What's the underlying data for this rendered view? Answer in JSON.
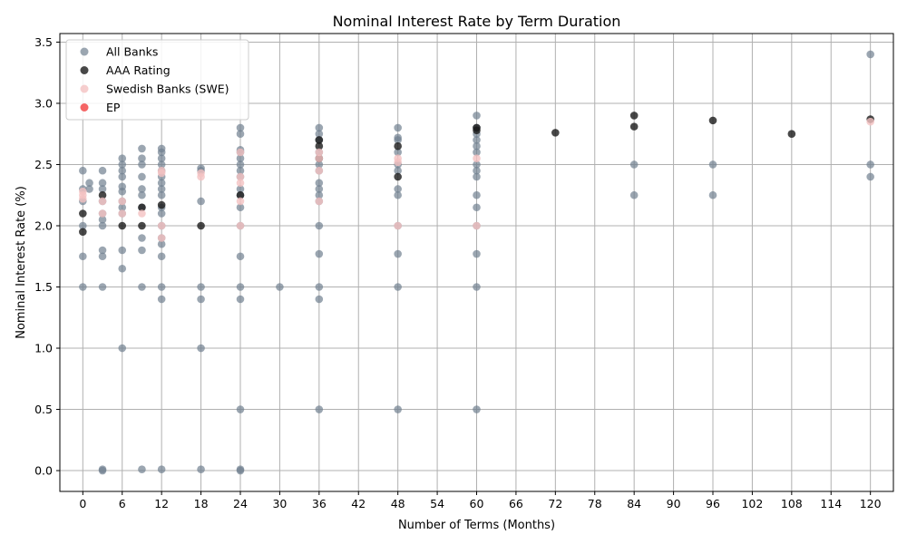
{
  "chart_data": {
    "type": "scatter",
    "title": "Nominal Interest Rate by Term Duration",
    "xlabel": "Number of Terms (Months)",
    "ylabel": "Nominal Interest Rate (%)",
    "xlim": [
      -3.5,
      123.5
    ],
    "ylim": [
      -0.17,
      3.57
    ],
    "x_ticks": [
      0,
      6,
      12,
      18,
      24,
      30,
      36,
      42,
      48,
      54,
      60,
      66,
      72,
      78,
      84,
      90,
      96,
      102,
      108,
      114,
      120
    ],
    "y_ticks": [
      0.0,
      0.5,
      1.0,
      1.5,
      2.0,
      2.5,
      3.0,
      3.5
    ],
    "y_tick_labels": [
      "0.0",
      "0.5",
      "1.0",
      "1.5",
      "2.0",
      "2.5",
      "3.0",
      "3.5"
    ],
    "grid": true,
    "legend": "top-left",
    "series": [
      {
        "name": "All Banks",
        "color": "#708090",
        "points": [
          [
            0,
            2.45
          ],
          [
            0,
            2.3
          ],
          [
            0,
            2.2
          ],
          [
            0,
            2.0
          ],
          [
            0,
            1.75
          ],
          [
            0,
            1.5
          ],
          [
            1,
            2.35
          ],
          [
            1,
            2.3
          ],
          [
            3,
            2.45
          ],
          [
            3,
            2.35
          ],
          [
            3,
            2.3
          ],
          [
            3,
            2.2
          ],
          [
            3,
            2.1
          ],
          [
            3,
            2.05
          ],
          [
            3,
            2.0
          ],
          [
            3,
            1.8
          ],
          [
            3,
            1.75
          ],
          [
            3,
            1.5
          ],
          [
            3,
            0.01
          ],
          [
            3,
            0.0
          ],
          [
            6,
            2.55
          ],
          [
            6,
            2.5
          ],
          [
            6,
            2.45
          ],
          [
            6,
            2.4
          ],
          [
            6,
            2.32
          ],
          [
            6,
            2.28
          ],
          [
            6,
            2.2
          ],
          [
            6,
            2.15
          ],
          [
            6,
            2.1
          ],
          [
            6,
            1.8
          ],
          [
            6,
            1.65
          ],
          [
            6,
            1.0
          ],
          [
            9,
            2.63
          ],
          [
            9,
            2.55
          ],
          [
            9,
            2.5
          ],
          [
            9,
            2.4
          ],
          [
            9,
            2.3
          ],
          [
            9,
            2.25
          ],
          [
            9,
            2.15
          ],
          [
            9,
            1.9
          ],
          [
            9,
            1.8
          ],
          [
            9,
            1.5
          ],
          [
            9,
            0.01
          ],
          [
            12,
            2.63
          ],
          [
            12,
            2.6
          ],
          [
            12,
            2.55
          ],
          [
            12,
            2.5
          ],
          [
            12,
            2.45
          ],
          [
            12,
            2.4
          ],
          [
            12,
            2.35
          ],
          [
            12,
            2.3
          ],
          [
            12,
            2.25
          ],
          [
            12,
            2.15
          ],
          [
            12,
            2.1
          ],
          [
            12,
            2.0
          ],
          [
            12,
            1.9
          ],
          [
            12,
            1.85
          ],
          [
            12,
            1.75
          ],
          [
            12,
            1.5
          ],
          [
            12,
            1.4
          ],
          [
            12,
            0.01
          ],
          [
            18,
            2.47
          ],
          [
            18,
            2.45
          ],
          [
            18,
            2.2
          ],
          [
            18,
            1.5
          ],
          [
            18,
            1.4
          ],
          [
            18,
            1.0
          ],
          [
            18,
            0.01
          ],
          [
            24,
            2.8
          ],
          [
            24,
            2.75
          ],
          [
            24,
            2.62
          ],
          [
            24,
            2.6
          ],
          [
            24,
            2.55
          ],
          [
            24,
            2.5
          ],
          [
            24,
            2.45
          ],
          [
            24,
            2.4
          ],
          [
            24,
            2.3
          ],
          [
            24,
            2.25
          ],
          [
            24,
            2.15
          ],
          [
            24,
            2.0
          ],
          [
            24,
            1.75
          ],
          [
            24,
            1.5
          ],
          [
            24,
            1.4
          ],
          [
            24,
            0.5
          ],
          [
            24,
            0.01
          ],
          [
            24,
            0.0
          ],
          [
            30,
            1.5
          ],
          [
            36,
            2.8
          ],
          [
            36,
            2.75
          ],
          [
            36,
            2.7
          ],
          [
            36,
            2.6
          ],
          [
            36,
            2.5
          ],
          [
            36,
            2.45
          ],
          [
            36,
            2.35
          ],
          [
            36,
            2.3
          ],
          [
            36,
            2.25
          ],
          [
            36,
            2.2
          ],
          [
            36,
            2.0
          ],
          [
            36,
            1.77
          ],
          [
            36,
            1.5
          ],
          [
            36,
            1.4
          ],
          [
            36,
            0.5
          ],
          [
            48,
            2.8
          ],
          [
            48,
            2.72
          ],
          [
            48,
            2.7
          ],
          [
            48,
            2.6
          ],
          [
            48,
            2.5
          ],
          [
            48,
            2.45
          ],
          [
            48,
            2.3
          ],
          [
            48,
            2.25
          ],
          [
            48,
            2.0
          ],
          [
            48,
            1.77
          ],
          [
            48,
            1.5
          ],
          [
            48,
            0.5
          ],
          [
            60,
            2.9
          ],
          [
            60,
            2.8
          ],
          [
            60,
            2.75
          ],
          [
            60,
            2.7
          ],
          [
            60,
            2.65
          ],
          [
            60,
            2.6
          ],
          [
            60,
            2.5
          ],
          [
            60,
            2.45
          ],
          [
            60,
            2.4
          ],
          [
            60,
            2.25
          ],
          [
            60,
            2.15
          ],
          [
            60,
            2.0
          ],
          [
            60,
            1.77
          ],
          [
            60,
            1.5
          ],
          [
            60,
            0.5
          ],
          [
            84,
            2.5
          ],
          [
            84,
            2.25
          ],
          [
            96,
            2.5
          ],
          [
            96,
            2.25
          ],
          [
            120,
            3.4
          ],
          [
            120,
            2.5
          ],
          [
            120,
            2.4
          ]
        ]
      },
      {
        "name": "AAA Rating",
        "color": "#1a1a1a",
        "points": [
          [
            0,
            2.1
          ],
          [
            0,
            1.95
          ],
          [
            3,
            2.25
          ],
          [
            6,
            2.0
          ],
          [
            9,
            2.15
          ],
          [
            9,
            2.0
          ],
          [
            12,
            2.17
          ],
          [
            18,
            2.0
          ],
          [
            24,
            2.25
          ],
          [
            36,
            2.7
          ],
          [
            36,
            2.65
          ],
          [
            36,
            2.55
          ],
          [
            48,
            2.65
          ],
          [
            48,
            2.4
          ],
          [
            60,
            2.8
          ],
          [
            60,
            2.78
          ],
          [
            72,
            2.76
          ],
          [
            84,
            2.9
          ],
          [
            84,
            2.81
          ],
          [
            96,
            2.86
          ],
          [
            108,
            2.75
          ],
          [
            120,
            2.87
          ]
        ]
      },
      {
        "name": "Swedish Banks (SWE)",
        "color": "#f4c2c2",
        "points": [
          [
            0,
            2.28
          ],
          [
            0,
            2.25
          ],
          [
            0,
            2.22
          ],
          [
            3,
            2.2
          ],
          [
            3,
            2.1
          ],
          [
            6,
            2.2
          ],
          [
            6,
            2.1
          ],
          [
            9,
            2.1
          ],
          [
            12,
            2.45
          ],
          [
            12,
            2.43
          ],
          [
            12,
            2.0
          ],
          [
            12,
            1.9
          ],
          [
            18,
            2.4
          ],
          [
            18,
            2.43
          ],
          [
            24,
            2.6
          ],
          [
            24,
            2.4
          ],
          [
            24,
            2.35
          ],
          [
            24,
            2.2
          ],
          [
            24,
            2.0
          ],
          [
            36,
            2.6
          ],
          [
            36,
            2.55
          ],
          [
            36,
            2.45
          ],
          [
            36,
            2.2
          ],
          [
            48,
            2.55
          ],
          [
            48,
            2.52
          ],
          [
            48,
            2.0
          ],
          [
            60,
            2.55
          ],
          [
            60,
            2.0
          ],
          [
            120,
            2.85
          ]
        ]
      },
      {
        "name": "EP",
        "color": "#f24040",
        "points": []
      }
    ]
  }
}
